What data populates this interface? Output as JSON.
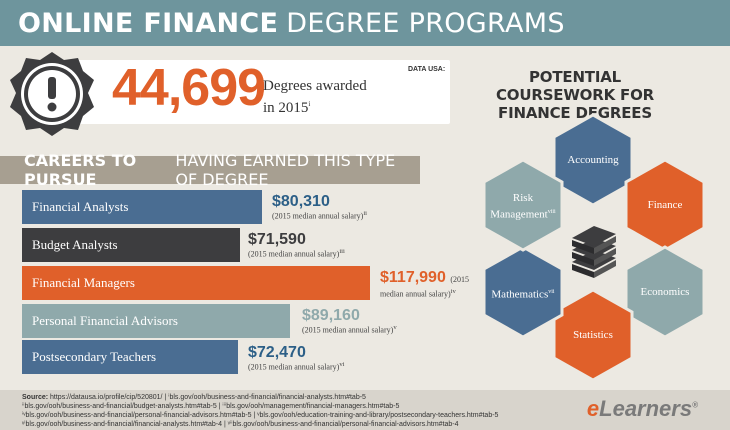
{
  "header": {
    "title_bold": "ONLINE FINANCE",
    "title_rest": "DEGREE PROGRAMS"
  },
  "stat": {
    "number": "44,699",
    "label_line1": "Degrees awarded",
    "label_line2": "in 2015",
    "label_ref": "i",
    "source": "DATA USA:",
    "badge_icon": "exclamation-icon"
  },
  "careers": {
    "title_bold": "CAREERS TO PURSUE",
    "title_rest": "HAVING EARNED THIS TYPE OF DEGREE",
    "items": [
      {
        "name": "Financial Analysts",
        "salary": "$80,310",
        "note": "(2015 median annual salary)",
        "ref": "ii",
        "color": "#4a6d92",
        "salary_color": "#2c5f87"
      },
      {
        "name": "Budget Analysts",
        "salary": "$71,590",
        "note": "(2015 median annual salary)",
        "ref": "iii",
        "color": "#3d3d3f",
        "salary_color": "#3d3d3f"
      },
      {
        "name": "Financial Managers",
        "salary": "$117,990",
        "note_a": "(2015",
        "note_b": "median annual salary)",
        "ref": "iv",
        "color": "#e0602a",
        "salary_color": "#e0602a"
      },
      {
        "name": "Personal Financial Advisors",
        "salary": "$89,160",
        "note": "(2015 median annual salary)",
        "ref": "v",
        "color": "#8fa9ab",
        "salary_color": "#8fa9ab"
      },
      {
        "name": "Postsecondary Teachers",
        "salary": "$72,470",
        "note": "(2015 median annual salary)",
        "ref": "vi",
        "color": "#4a6d92",
        "salary_color": "#2c5f87"
      }
    ]
  },
  "coursework": {
    "title_line1": "POTENTIAL COURSEWORK FOR",
    "title_line2": "FINANCE DEGREES",
    "center_icon": "book-stack-icon",
    "items": {
      "accounting": "Accounting",
      "finance": "Finance",
      "economics": "Economics",
      "statistics": "Statistics",
      "mathematics": "Mathematics",
      "mathematics_ref": "vii",
      "risk_line1": "Risk",
      "risk_line2": "Management",
      "risk_ref": "viii"
    },
    "colors": {
      "blue": "#4a6d92",
      "orange": "#e0602a",
      "teal": "#8fa9ab",
      "dark": "#3d3d3f"
    }
  },
  "footer": {
    "source_label": "Source:",
    "line1": "https://datausa.io/profile/cip/520801/ | ⁱbls.gov/ooh/business-and-financial/financial-analysts.htm#tab-5",
    "line2": "ⁱⁱbls.gov/ooh/business-and-financial/budget-analysts.htm#tab-5 | ⁱⁱⁱbls.gov/ooh/management/financial-managers.htm#tab-5",
    "line3": "ⁱᵛbls.gov/ooh/business-and-financial/personal-financial-advisors.htm#tab-5 | ᵛbls.gov/ooh/education-training-and-library/postsecondary-teachers.htm#tab-5",
    "line4": "ᵛⁱbls.gov/ooh/business-and-financial/financial-analysts.htm#tab-4 | ᵛⁱⁱbls.gov/ooh/business-and-financial/personal-financial-advisors.htm#tab-4"
  },
  "logo": {
    "e": "e",
    "rest": "Learners",
    "mark": "®"
  }
}
